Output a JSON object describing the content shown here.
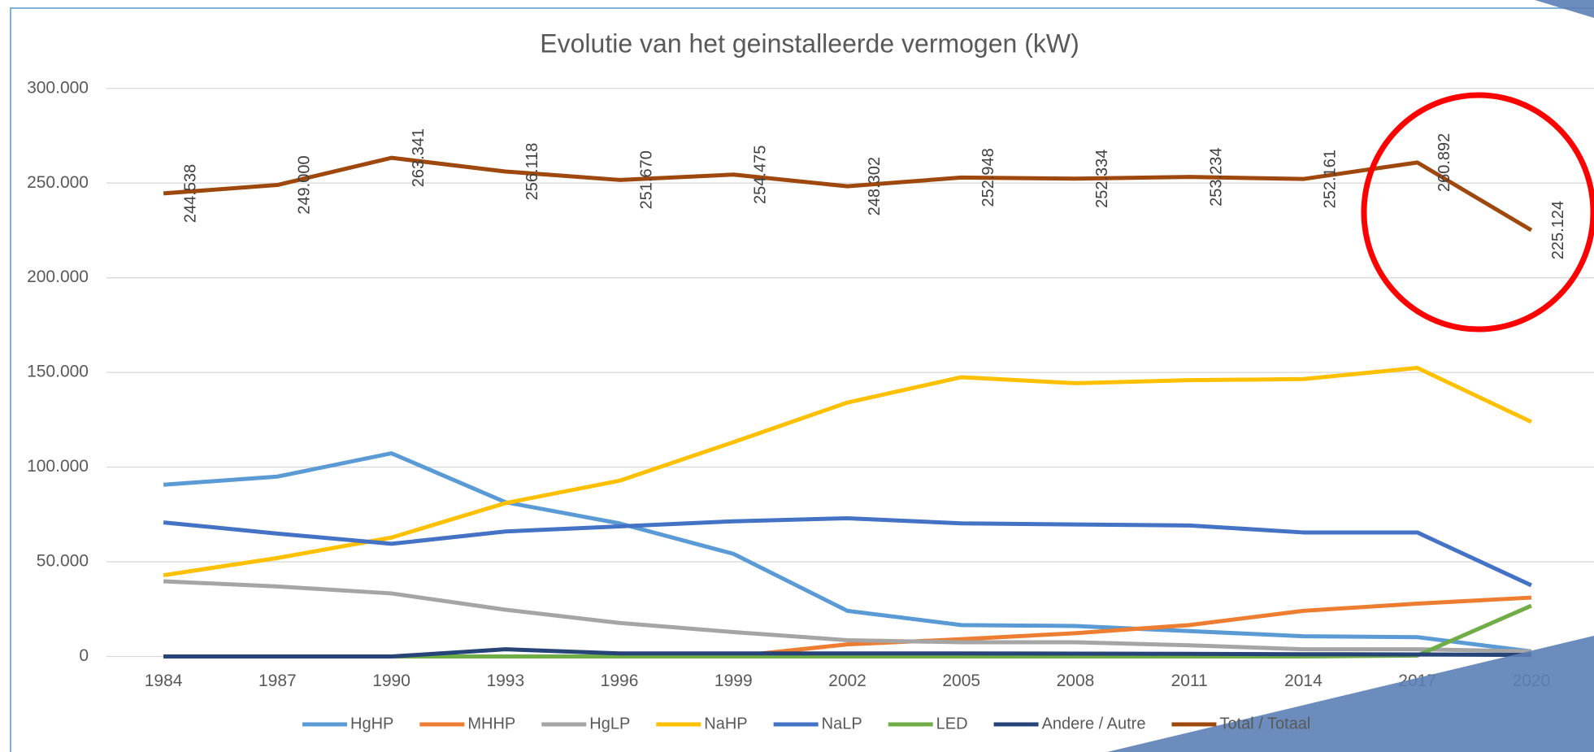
{
  "chart_data": {
    "type": "line",
    "title": "Evolutie van het geinstalleerde vermogen (kW)",
    "categories": [
      "1984",
      "1987",
      "1990",
      "1993",
      "1996",
      "1999",
      "2002",
      "2005",
      "2008",
      "2011",
      "2014",
      "2017",
      "2020"
    ],
    "ylim": [
      0,
      300000
    ],
    "yticks": [
      0,
      {
        "value": 50000,
        "label": "50.000"
      },
      {
        "value": 100000,
        "label": "100.000"
      },
      {
        "value": 150000,
        "label": "150.000"
      },
      {
        "value": 200000,
        "label": "200.000"
      },
      {
        "value": 250000,
        "label": "250.000"
      },
      {
        "value": 300000,
        "label": "300.000"
      }
    ],
    "grid": true,
    "legend": "bottom",
    "series": [
      {
        "name": "HgHP",
        "color": "#5b9bd5",
        "values": [
          90700,
          95000,
          107300,
          81500,
          70300,
          54200,
          24100,
          16600,
          16100,
          13400,
          10700,
          10200,
          2700
        ]
      },
      {
        "name": "MHHP",
        "color": "#ed7d31",
        "values": [
          0,
          0,
          0,
          0,
          0,
          0,
          6400,
          9100,
          12300,
          16600,
          24100,
          27900,
          31100
        ]
      },
      {
        "name": "HgLP",
        "color": "#a5a5a5",
        "values": [
          39700,
          37000,
          33300,
          24700,
          17700,
          12900,
          8600,
          7500,
          7500,
          5900,
          3800,
          3800,
          2700
        ]
      },
      {
        "name": "NaHP",
        "color": "#ffc000",
        "values": [
          42900,
          52000,
          62800,
          81000,
          92800,
          113200,
          134100,
          147500,
          144300,
          145900,
          146500,
          152400,
          123900
        ]
      },
      {
        "name": "NaLP",
        "color": "#4472c4",
        "values": [
          70800,
          64900,
          59500,
          66000,
          68700,
          71400,
          73000,
          70300,
          69700,
          69200,
          65500,
          65500,
          37600
        ]
      },
      {
        "name": "LED",
        "color": "#70ad47",
        "values": [
          0,
          0,
          0,
          0,
          0,
          0,
          0,
          0,
          0,
          0,
          0,
          500,
          26800
        ]
      },
      {
        "name": "Andere / Autre",
        "color": "#264478",
        "values": [
          0,
          0,
          0,
          3800,
          1600,
          1600,
          1600,
          1600,
          1500,
          1400,
          1200,
          1100,
          800
        ]
      },
      {
        "name": "Total / Totaal",
        "color": "#9e480e",
        "values": [
          244538,
          249000,
          263341,
          256118,
          251670,
          254475,
          248302,
          252948,
          252334,
          253234,
          252161,
          260892,
          225124
        ],
        "value_labels": [
          "244.538",
          "249.000",
          "263.341",
          "256.118",
          "251.670",
          "254.475",
          "248.302",
          "252.948",
          "252.334",
          "253.234",
          "252.161",
          "260.892",
          "225.124"
        ]
      }
    ]
  }
}
